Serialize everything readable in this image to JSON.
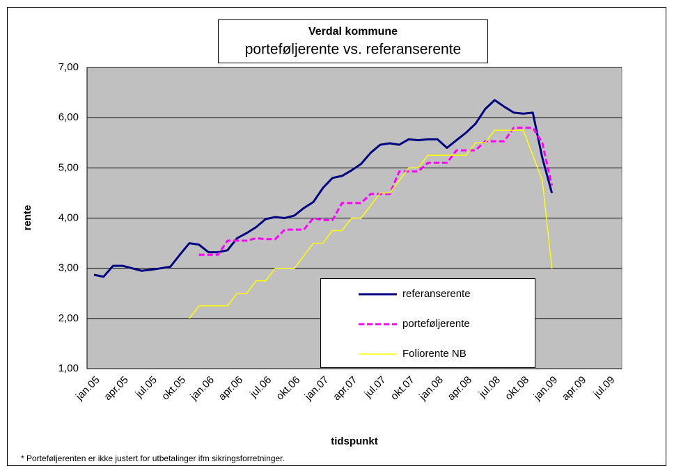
{
  "chart_data": {
    "type": "line",
    "title": "Verdal kommune",
    "subtitle": "porteføljerente vs. referanserente",
    "y_label": "rente",
    "x_label": "tidspunkt",
    "footnote": "* Porteføljerenten er ikke justert for utbetalinger ifm sikringsforretninger.",
    "categories": [
      "jan.05",
      null,
      null,
      "apr.05",
      null,
      null,
      "jul.05",
      null,
      null,
      "okt.05",
      null,
      null,
      "jan.06",
      null,
      null,
      "apr.06",
      null,
      null,
      "jul.06",
      null,
      null,
      "okt.06",
      null,
      null,
      "jan.07",
      null,
      null,
      "apr.07",
      null,
      null,
      "jul.07",
      null,
      null,
      "okt.07",
      null,
      null,
      "jan.08",
      null,
      null,
      "apr.08",
      null,
      null,
      "jul.08",
      null,
      null,
      "okt.08",
      null,
      null,
      "jan.09",
      null,
      null,
      "apr.09",
      null,
      null,
      "jul.09"
    ],
    "series": [
      {
        "name": "referanserente",
        "color": "#000080",
        "dashed": false,
        "width": 3,
        "values": [
          2.87,
          2.83,
          3.05,
          3.05,
          3,
          2.95,
          2.97,
          3,
          3.03,
          3.27,
          3.5,
          3.47,
          3.32,
          3.32,
          3.36,
          3.6,
          3.7,
          3.82,
          3.98,
          4.02,
          4,
          4.05,
          4.2,
          4.32,
          4.6,
          4.8,
          4.84,
          4.95,
          5.08,
          5.3,
          5.46,
          5.49,
          5.46,
          5.57,
          5.55,
          5.57,
          5.57,
          5.4,
          5.55,
          5.7,
          5.88,
          6.17,
          6.35,
          6.22,
          6.1,
          6.08,
          6.1,
          5.2,
          4.5,
          null,
          null,
          null,
          null,
          null,
          null
        ]
      },
      {
        "name": "porteføljerente",
        "color": "#ff00ff",
        "dashed": true,
        "width": 3,
        "values": [
          null,
          null,
          null,
          null,
          null,
          null,
          null,
          null,
          null,
          null,
          null,
          3.27,
          3.27,
          3.27,
          3.55,
          3.55,
          3.55,
          3.6,
          3.58,
          3.58,
          3.77,
          3.77,
          3.77,
          4,
          3.96,
          3.96,
          4.3,
          4.3,
          4.3,
          4.48,
          4.48,
          4.48,
          4.93,
          4.93,
          4.93,
          5.1,
          5.1,
          5.1,
          5.35,
          5.35,
          5.35,
          5.53,
          5.53,
          5.53,
          5.8,
          5.8,
          5.8,
          5.5,
          4.65,
          null,
          null,
          null,
          null,
          null,
          null
        ]
      },
      {
        "name": "Foliorente NB",
        "color": "#ffff00",
        "dashed": false,
        "width": 1.5,
        "values": [
          null,
          null,
          null,
          null,
          null,
          null,
          null,
          null,
          null,
          null,
          2,
          2.25,
          2.25,
          2.25,
          2.25,
          2.5,
          2.5,
          2.75,
          2.75,
          3,
          3,
          3,
          3.25,
          3.5,
          3.5,
          3.75,
          3.75,
          4,
          4,
          4.25,
          4.5,
          4.5,
          4.75,
          5,
          5,
          5.25,
          5.25,
          5.25,
          5.25,
          5.25,
          5.5,
          5.5,
          5.75,
          5.75,
          5.75,
          5.75,
          5.25,
          4.75,
          3,
          null,
          null,
          null,
          null,
          null,
          null
        ]
      }
    ],
    "ylim": [
      1,
      7
    ],
    "yticks": [
      {
        "value": 1,
        "label": "1,00"
      },
      {
        "value": 2,
        "label": "2,00"
      },
      {
        "value": 3,
        "label": "3,00"
      },
      {
        "value": 4,
        "label": "4,00"
      },
      {
        "value": 5,
        "label": "5,00"
      },
      {
        "value": 6,
        "label": "6,00"
      },
      {
        "value": 7,
        "label": "7,00"
      }
    ],
    "grid": true,
    "plot_background": "#c0c0c0",
    "legend": "lower right"
  }
}
